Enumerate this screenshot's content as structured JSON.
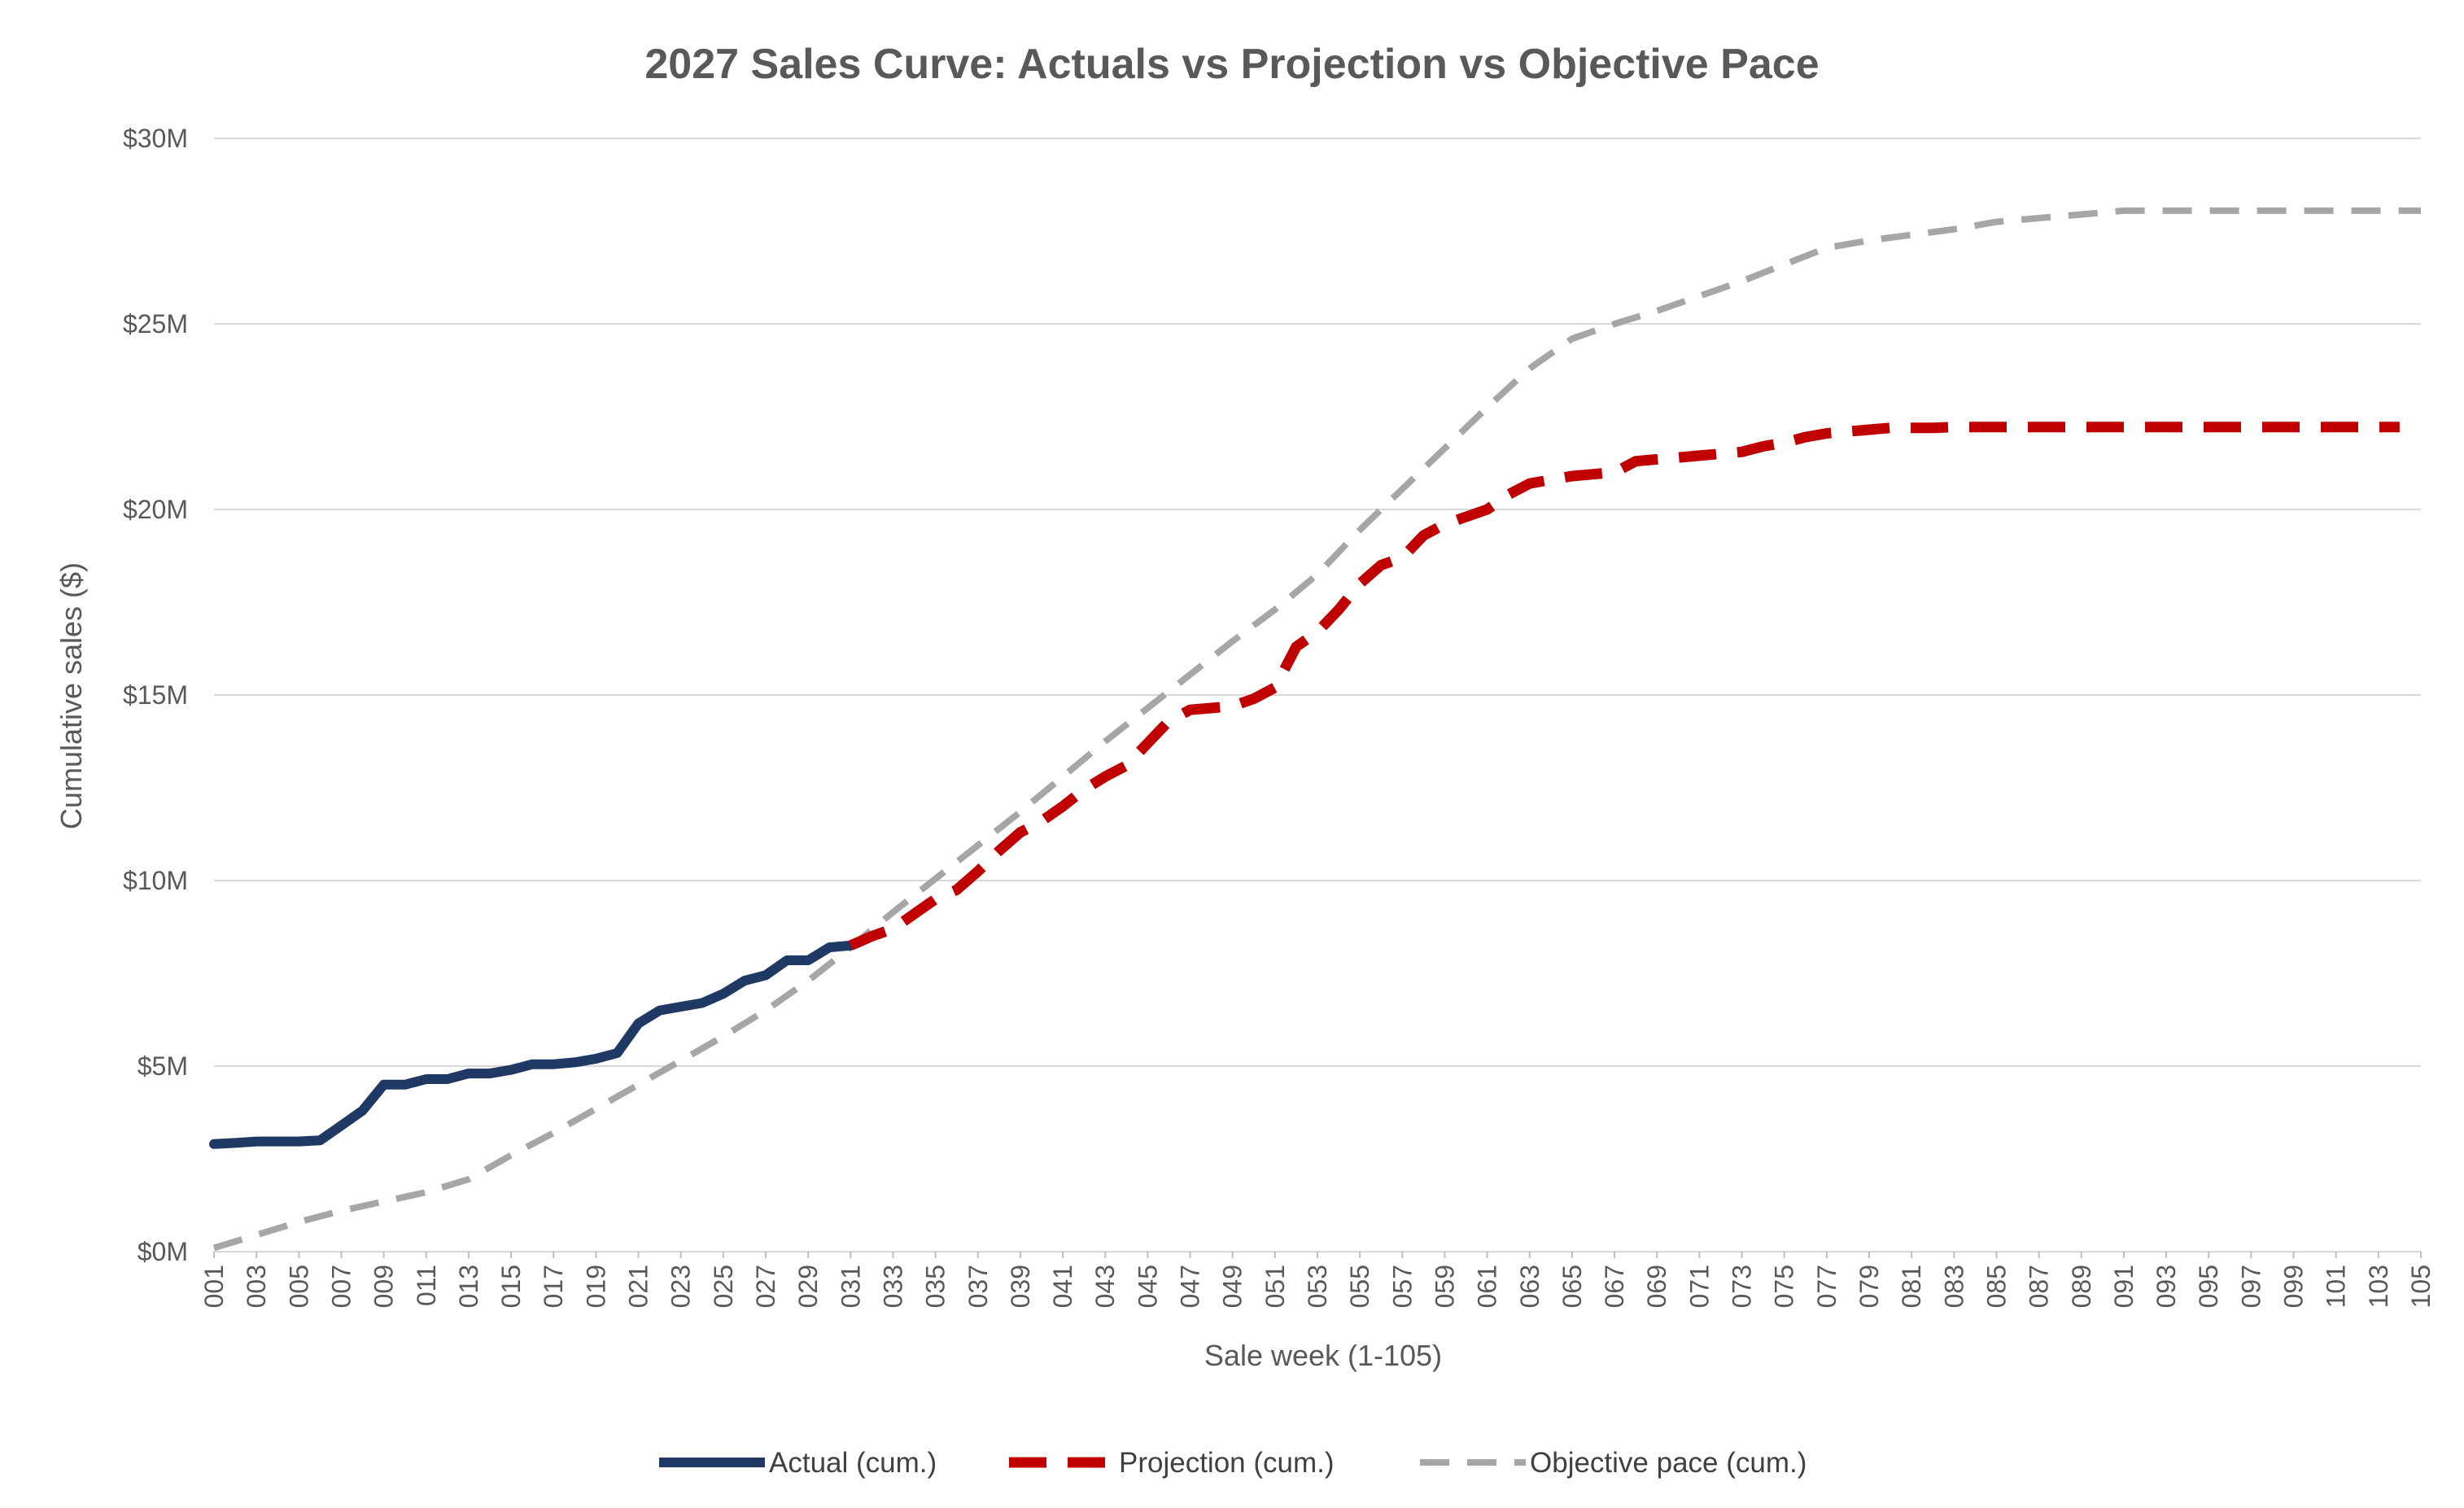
{
  "chart_data": {
    "type": "line",
    "title": "2027 Sales Curve: Actuals vs Projection vs Objective Pace",
    "xlabel": "Sale week (1-105)",
    "ylabel": "Cumulative sales ($)",
    "ylim": [
      0,
      30
    ],
    "yunit": "$M",
    "yticks": [
      {
        "value": 0,
        "label": "$0M"
      },
      {
        "value": 5,
        "label": "$5M"
      },
      {
        "value": 10,
        "label": "$10M"
      },
      {
        "value": 15,
        "label": "$15M"
      },
      {
        "value": 20,
        "label": "$20M"
      },
      {
        "value": 25,
        "label": "$25M"
      },
      {
        "value": 30,
        "label": "$30M"
      }
    ],
    "xlim": [
      1,
      105
    ],
    "xtick_labels": [
      "001",
      "003",
      "005",
      "007",
      "009",
      "011",
      "013",
      "015",
      "017",
      "019",
      "021",
      "023",
      "025",
      "027",
      "029",
      "031",
      "033",
      "035",
      "037",
      "039",
      "041",
      "043",
      "045",
      "047",
      "049",
      "051",
      "053",
      "055",
      "057",
      "059",
      "061",
      "063",
      "065",
      "067",
      "069",
      "071",
      "073",
      "075",
      "077",
      "079",
      "081",
      "083",
      "085",
      "087",
      "089",
      "091",
      "093",
      "095",
      "097",
      "099",
      "101",
      "103",
      "105"
    ],
    "grid": "horizontal",
    "legend_position": "bottom",
    "series": [
      {
        "name": "Actual (cum.)",
        "color": "#203864",
        "style": "solid",
        "points": [
          [
            1,
            2.9
          ],
          [
            2,
            2.93
          ],
          [
            3,
            2.97
          ],
          [
            4,
            2.97
          ],
          [
            5,
            2.97
          ],
          [
            6,
            3.0
          ],
          [
            7,
            3.4
          ],
          [
            8,
            3.8
          ],
          [
            9,
            4.5
          ],
          [
            10,
            4.5
          ],
          [
            11,
            4.65
          ],
          [
            12,
            4.65
          ],
          [
            13,
            4.8
          ],
          [
            14,
            4.8
          ],
          [
            15,
            4.9
          ],
          [
            16,
            5.05
          ],
          [
            17,
            5.05
          ],
          [
            18,
            5.1
          ],
          [
            19,
            5.2
          ],
          [
            20,
            5.35
          ],
          [
            21,
            6.15
          ],
          [
            22,
            6.5
          ],
          [
            23,
            6.6
          ],
          [
            24,
            6.7
          ],
          [
            25,
            6.95
          ],
          [
            26,
            7.3
          ],
          [
            27,
            7.45
          ],
          [
            28,
            7.85
          ],
          [
            29,
            7.85
          ],
          [
            30,
            8.2
          ],
          [
            31,
            8.25
          ]
        ]
      },
      {
        "name": "Projection (cum.)",
        "color": "#C00000",
        "style": "dashed",
        "points": [
          [
            31,
            8.25
          ],
          [
            32,
            8.5
          ],
          [
            33,
            8.7
          ],
          [
            34,
            9.1
          ],
          [
            35,
            9.5
          ],
          [
            36,
            9.75
          ],
          [
            37,
            10.25
          ],
          [
            38,
            10.8
          ],
          [
            39,
            11.3
          ],
          [
            40,
            11.6
          ],
          [
            41,
            12.0
          ],
          [
            42,
            12.45
          ],
          [
            43,
            12.8
          ],
          [
            44,
            13.1
          ],
          [
            45,
            13.7
          ],
          [
            46,
            14.3
          ],
          [
            47,
            14.6
          ],
          [
            48,
            14.65
          ],
          [
            49,
            14.7
          ],
          [
            50,
            14.9
          ],
          [
            51,
            15.2
          ],
          [
            52,
            16.3
          ],
          [
            53,
            16.7
          ],
          [
            54,
            17.3
          ],
          [
            55,
            18.0
          ],
          [
            56,
            18.5
          ],
          [
            57,
            18.7
          ],
          [
            58,
            19.3
          ],
          [
            59,
            19.6
          ],
          [
            60,
            19.8
          ],
          [
            61,
            20.0
          ],
          [
            62,
            20.4
          ],
          [
            63,
            20.7
          ],
          [
            64,
            20.8
          ],
          [
            65,
            20.9
          ],
          [
            66,
            20.95
          ],
          [
            67,
            21.0
          ],
          [
            68,
            21.3
          ],
          [
            69,
            21.35
          ],
          [
            70,
            21.4
          ],
          [
            71,
            21.45
          ],
          [
            72,
            21.5
          ],
          [
            73,
            21.55
          ],
          [
            74,
            21.7
          ],
          [
            75,
            21.8
          ],
          [
            76,
            21.95
          ],
          [
            77,
            22.05
          ],
          [
            78,
            22.1
          ],
          [
            79,
            22.15
          ],
          [
            80,
            22.2
          ],
          [
            81,
            22.2
          ],
          [
            82,
            22.2
          ],
          [
            83,
            22.22
          ],
          [
            84,
            22.22
          ],
          [
            85,
            22.22
          ],
          [
            86,
            22.22
          ],
          [
            87,
            22.22
          ],
          [
            88,
            22.22
          ],
          [
            89,
            22.22
          ],
          [
            90,
            22.22
          ],
          [
            91,
            22.22
          ],
          [
            92,
            22.22
          ],
          [
            93,
            22.22
          ],
          [
            94,
            22.22
          ],
          [
            95,
            22.22
          ],
          [
            96,
            22.22
          ],
          [
            97,
            22.22
          ],
          [
            98,
            22.22
          ],
          [
            99,
            22.22
          ],
          [
            100,
            22.22
          ],
          [
            101,
            22.22
          ],
          [
            102,
            22.22
          ],
          [
            103,
            22.22
          ],
          [
            104,
            22.22
          ]
        ]
      },
      {
        "name": "Objective pace (cum.)",
        "color": "#A6A6A6",
        "style": "dashed",
        "points": [
          [
            1,
            0.1
          ],
          [
            3,
            0.45
          ],
          [
            5,
            0.8
          ],
          [
            7,
            1.1
          ],
          [
            9,
            1.35
          ],
          [
            11,
            1.6
          ],
          [
            13,
            1.95
          ],
          [
            15,
            2.6
          ],
          [
            17,
            3.2
          ],
          [
            19,
            3.85
          ],
          [
            21,
            4.5
          ],
          [
            23,
            5.15
          ],
          [
            25,
            5.8
          ],
          [
            27,
            6.5
          ],
          [
            29,
            7.3
          ],
          [
            31,
            8.2
          ],
          [
            33,
            9.15
          ],
          [
            35,
            10.05
          ],
          [
            37,
            10.95
          ],
          [
            39,
            11.85
          ],
          [
            41,
            12.8
          ],
          [
            43,
            13.75
          ],
          [
            45,
            14.65
          ],
          [
            47,
            15.55
          ],
          [
            49,
            16.45
          ],
          [
            51,
            17.3
          ],
          [
            53,
            18.25
          ],
          [
            55,
            19.45
          ],
          [
            57,
            20.55
          ],
          [
            59,
            21.65
          ],
          [
            61,
            22.75
          ],
          [
            63,
            23.8
          ],
          [
            65,
            24.6
          ],
          [
            67,
            25.0
          ],
          [
            69,
            25.35
          ],
          [
            71,
            25.75
          ],
          [
            73,
            26.15
          ],
          [
            75,
            26.6
          ],
          [
            77,
            27.05
          ],
          [
            79,
            27.25
          ],
          [
            81,
            27.4
          ],
          [
            83,
            27.55
          ],
          [
            85,
            27.75
          ],
          [
            87,
            27.85
          ],
          [
            89,
            27.95
          ],
          [
            91,
            28.05
          ],
          [
            93,
            28.05
          ],
          [
            95,
            28.05
          ],
          [
            97,
            28.05
          ],
          [
            99,
            28.05
          ],
          [
            101,
            28.05
          ],
          [
            103,
            28.05
          ],
          [
            105,
            28.05
          ]
        ]
      }
    ]
  }
}
